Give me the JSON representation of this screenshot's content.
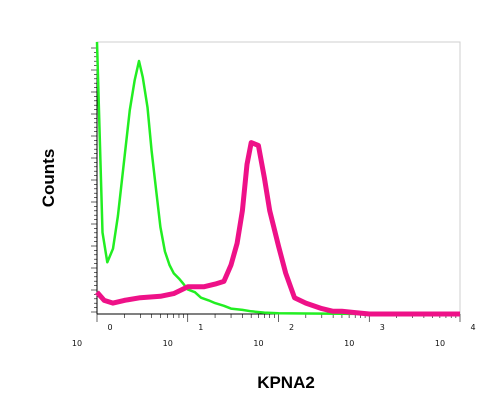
{
  "chart_data": {
    "type": "line",
    "title": "",
    "xlabel": "KPNA2",
    "ylabel": "Counts",
    "x_scale": "log",
    "xlim": [
      1,
      10000
    ],
    "ylim": [
      0,
      100
    ],
    "grid": false,
    "x_ticks": [
      {
        "value": 1,
        "base": "10",
        "exp": "0"
      },
      {
        "value": 10,
        "base": "10",
        "exp": "1"
      },
      {
        "value": 100,
        "base": "10",
        "exp": "2"
      },
      {
        "value": 1000,
        "base": "10",
        "exp": "3"
      },
      {
        "value": 10000,
        "base": "10",
        "exp": "4"
      }
    ],
    "series": [
      {
        "color": "#22ee22",
        "x": [
          1,
          1.15,
          1.3,
          1.5,
          1.7,
          2.0,
          2.3,
          2.6,
          2.9,
          3.2,
          3.6,
          4.0,
          4.5,
          5.0,
          5.6,
          6.3,
          7.0,
          8.0,
          9.0,
          10,
          12,
          14,
          17,
          20,
          25,
          30,
          40,
          50,
          70,
          100,
          200,
          500,
          1000,
          10000
        ],
        "y": [
          100,
          30,
          19,
          24,
          36,
          57,
          75,
          86,
          93,
          87,
          76,
          60,
          45,
          32,
          23,
          18,
          15,
          13,
          11,
          9,
          8,
          6,
          5,
          4,
          3,
          2,
          1.5,
          1,
          0.5,
          0.3,
          0.2,
          0.1,
          0,
          0
        ]
      },
      {
        "color": "#ee1188",
        "x": [
          1,
          1.2,
          1.5,
          2,
          3,
          5,
          7,
          10,
          15,
          20,
          25,
          30,
          35,
          40,
          45,
          50,
          60,
          70,
          80,
          100,
          120,
          150,
          200,
          300,
          400,
          500,
          700,
          1000,
          2000,
          5000,
          10000
        ],
        "y": [
          8,
          5,
          4,
          5,
          6,
          6.5,
          7.5,
          10,
          10,
          11,
          12,
          18,
          26,
          38,
          55,
          63,
          62,
          50,
          38,
          25,
          15,
          6,
          4,
          2,
          1,
          1,
          0.5,
          0,
          0,
          0,
          0
        ]
      }
    ]
  }
}
